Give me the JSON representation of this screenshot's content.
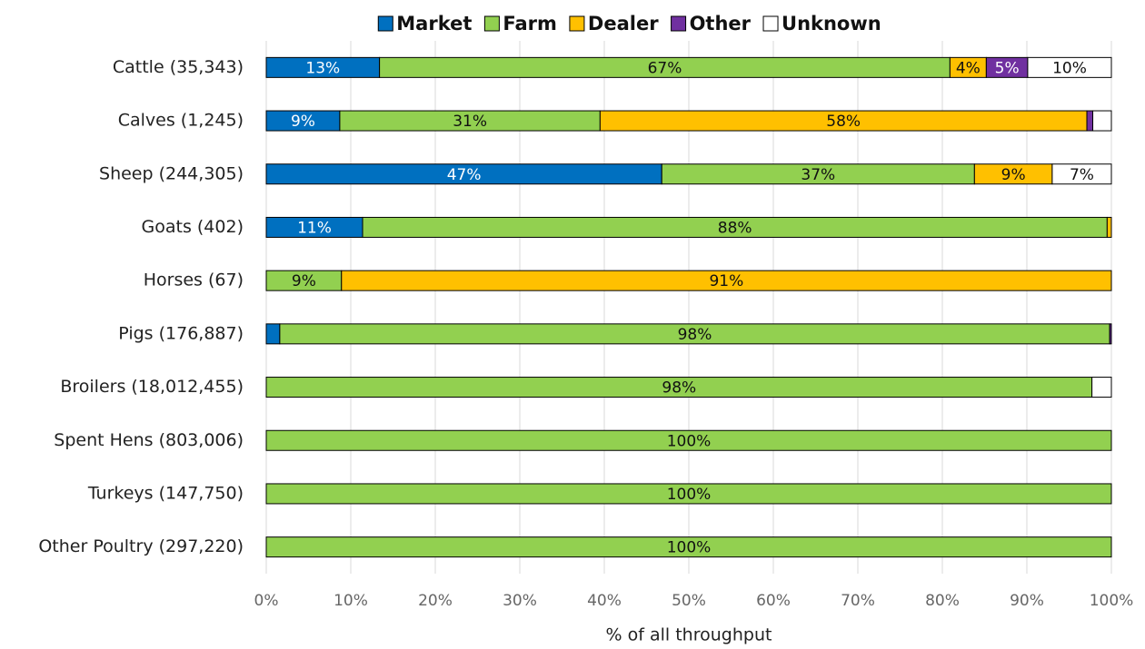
{
  "chart_data": {
    "type": "stacked_bar_horizontal",
    "categories": [
      "Cattle (35,343)",
      "Calves (1,245)",
      "Sheep (244,305)",
      "Goats (402)",
      "Horses (67)",
      "Pigs (176,887)",
      "Broilers (18,012,455)",
      "Spent Hens (803,006)",
      "Turkeys (147,750)",
      "Other Poultry (297,220)"
    ],
    "series": [
      {
        "name": "Market",
        "color": "#0070c0",
        "values": [
          13.4,
          8.7,
          46.8,
          11.4,
          0,
          1.6,
          0,
          0,
          0,
          0
        ],
        "value_labels": [
          "13%",
          "9%",
          "47%",
          "11%",
          null,
          null,
          null,
          null,
          null,
          null
        ]
      },
      {
        "name": "Farm",
        "color": "#92d050",
        "values": [
          67.5,
          30.8,
          37.0,
          88.1,
          8.9,
          98.2,
          97.7,
          100,
          100,
          100
        ],
        "value_labels": [
          "67%",
          "31%",
          "37%",
          "88%",
          "9%",
          "98%",
          "98%",
          "100%",
          "100%",
          "100%"
        ]
      },
      {
        "name": "Dealer",
        "color": "#ffc000",
        "values": [
          4.3,
          57.6,
          9.2,
          0.5,
          91.1,
          0,
          0,
          0,
          0,
          0
        ],
        "value_labels": [
          "4%",
          "58%",
          "9%",
          null,
          "91%",
          null,
          null,
          null,
          null,
          null
        ]
      },
      {
        "name": "Other",
        "color": "#7030a0",
        "values": [
          4.9,
          0.7,
          0,
          0,
          0,
          0.2,
          0,
          0,
          0,
          0
        ],
        "value_labels": [
          "5%",
          null,
          null,
          null,
          null,
          null,
          null,
          null,
          null,
          null
        ]
      },
      {
        "name": "Unknown",
        "color": "#ffffff",
        "values": [
          9.9,
          2.2,
          7.0,
          0,
          0,
          0,
          2.3,
          0,
          0,
          0
        ],
        "value_labels": [
          "10%",
          null,
          "7%",
          null,
          null,
          null,
          null,
          null,
          null,
          null
        ]
      }
    ],
    "xlabel": "% of all throughput",
    "xlim": [
      0,
      100
    ],
    "xticks": [
      {
        "value": 0,
        "label": "0%"
      },
      {
        "value": 10,
        "label": "10%"
      },
      {
        "value": 20,
        "label": "20%"
      },
      {
        "value": 30,
        "label": "30%"
      },
      {
        "value": 40,
        "label": "40%"
      },
      {
        "value": 50,
        "label": "50%"
      },
      {
        "value": 60,
        "label": "60%"
      },
      {
        "value": 70,
        "label": "70%"
      },
      {
        "value": 80,
        "label": "80%"
      },
      {
        "value": 90,
        "label": "90%"
      },
      {
        "value": 100,
        "label": "100%"
      }
    ],
    "grid": true,
    "legend": "top"
  }
}
